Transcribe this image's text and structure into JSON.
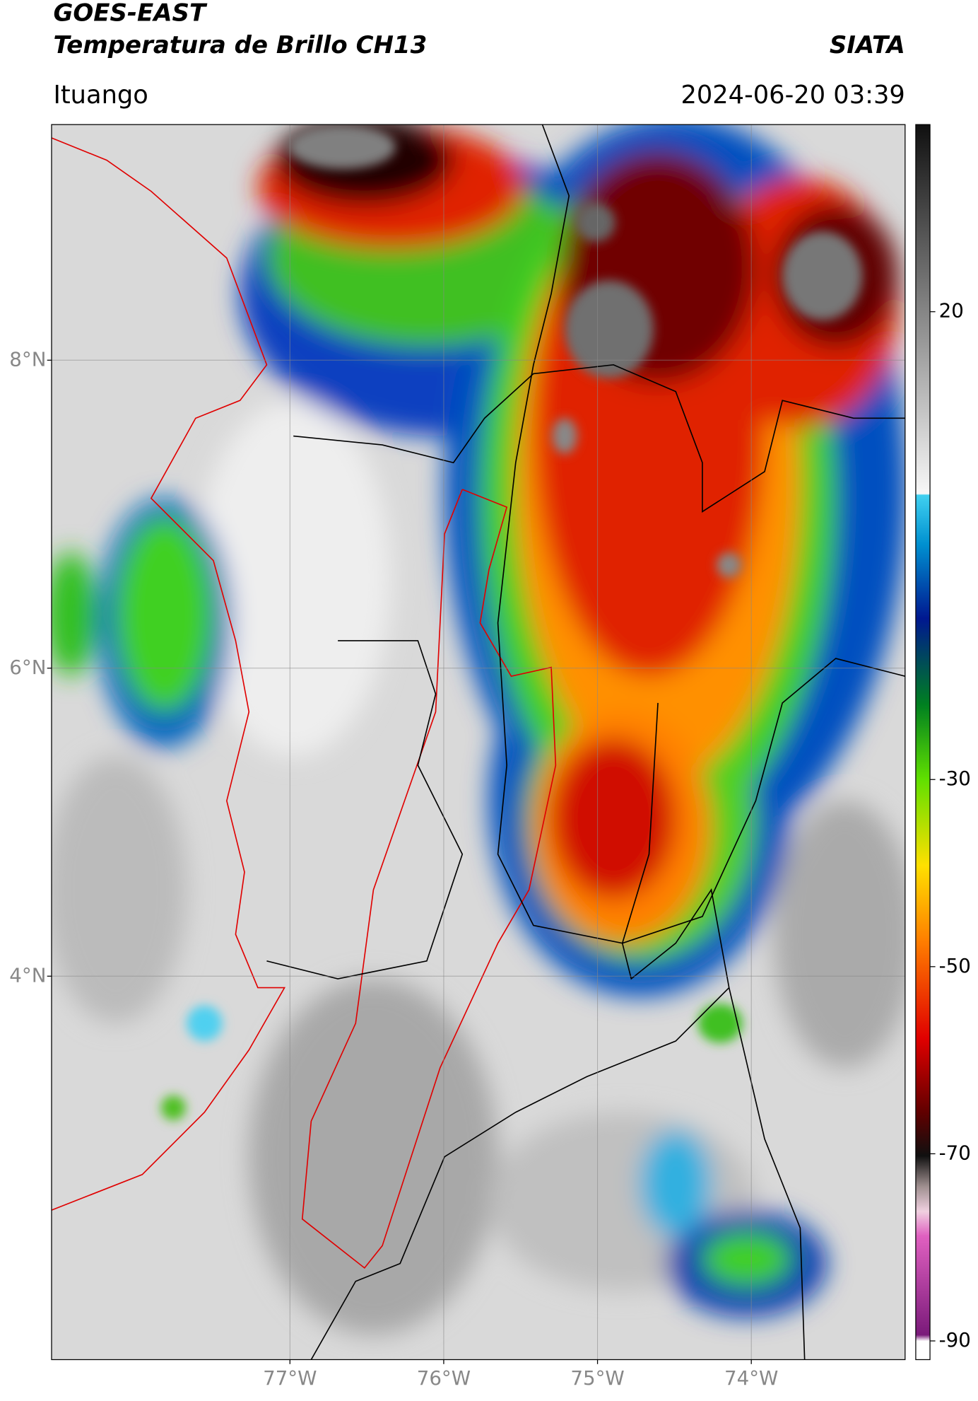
{
  "header": {
    "title": "GOES-EAST",
    "subtitle": "Temperatura de Brillo CH13",
    "source": "SIATA",
    "region": "Ituango",
    "datetime": "2024-06-20 03:39"
  },
  "map": {
    "lonlim": [
      -78.55,
      -73.0
    ],
    "latlim": [
      1.51,
      9.53
    ],
    "grid": true,
    "lat_ticks": [
      {
        "value": 8,
        "label": "8°N"
      },
      {
        "value": 6,
        "label": "6°N"
      },
      {
        "value": 4,
        "label": "4°N"
      }
    ],
    "lon_ticks": [
      {
        "value": -77,
        "label": "77°W"
      },
      {
        "value": -76,
        "label": "76°W"
      },
      {
        "value": -75,
        "label": "75°W"
      },
      {
        "value": -74,
        "label": "74°W"
      }
    ]
  },
  "colorbar": {
    "clim": [
      -92,
      40
    ],
    "ticks": [
      20,
      -30,
      -50,
      -70,
      -90
    ]
  }
}
